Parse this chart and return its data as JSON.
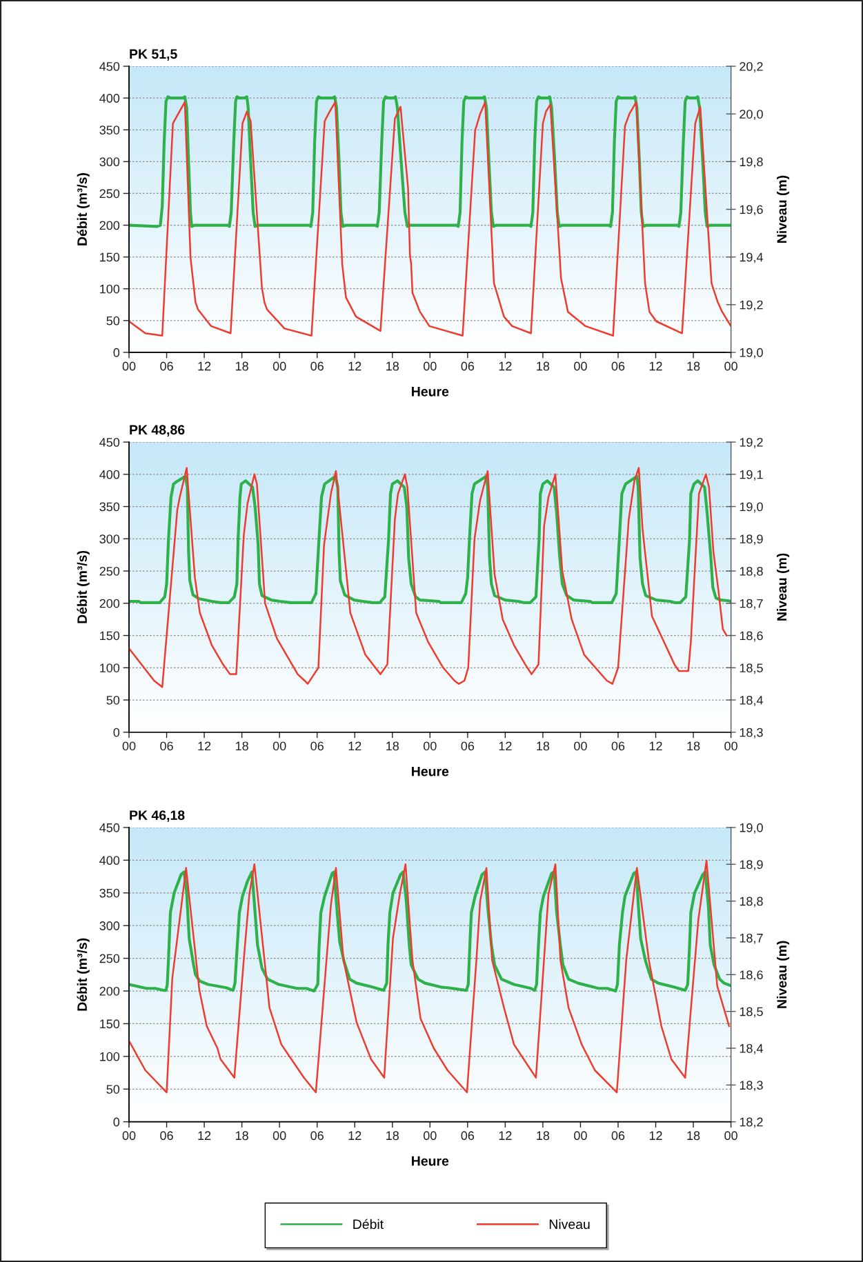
{
  "chart_data": [
    {
      "type": "line",
      "title": "PK 51,5",
      "xlabel": "Heure",
      "ylabel": "Débit (m³/s)",
      "y2label": "Niveau (m)",
      "grid": "y",
      "xlim": [
        0,
        96
      ],
      "xticks": [
        {
          "value": 0,
          "label": "00"
        },
        {
          "value": 6,
          "label": "06"
        },
        {
          "value": 12,
          "label": "12"
        },
        {
          "value": 18,
          "label": "18"
        },
        {
          "value": 24,
          "label": "00"
        },
        {
          "value": 30,
          "label": "06"
        },
        {
          "value": 36,
          "label": "12"
        },
        {
          "value": 42,
          "label": "18"
        },
        {
          "value": 48,
          "label": "00"
        },
        {
          "value": 54,
          "label": "06"
        },
        {
          "value": 60,
          "label": "12"
        },
        {
          "value": 66,
          "label": "18"
        },
        {
          "value": 72,
          "label": "00"
        },
        {
          "value": 78,
          "label": "06"
        },
        {
          "value": 84,
          "label": "12"
        },
        {
          "value": 90,
          "label": "18"
        },
        {
          "value": 96,
          "label": "00"
        }
      ],
      "ylim": [
        0,
        450
      ],
      "yticks": [
        0,
        50,
        100,
        150,
        200,
        250,
        300,
        350,
        400,
        450
      ],
      "y2lim": [
        19.0,
        20.2
      ],
      "y2ticks": [
        {
          "value": 19.0,
          "label": "19,0"
        },
        {
          "value": 19.2,
          "label": "19,2"
        },
        {
          "value": 19.4,
          "label": "19,4"
        },
        {
          "value": 19.6,
          "label": "19,6"
        },
        {
          "value": 19.8,
          "label": "19,8"
        },
        {
          "value": 20.0,
          "label": "20,0"
        },
        {
          "value": 20.2,
          "label": "20,2"
        }
      ],
      "series": [
        {
          "color": "#2eb04b",
          "axis": "y",
          "x": [
            0,
            4.5,
            5.0,
            5.3,
            5.6,
            5.9,
            6.2,
            6.6,
            8.6,
            8.9,
            9.2,
            9.5,
            9.8,
            10.0,
            10.5,
            15.7,
            16.0,
            16.3,
            16.7,
            17.0,
            17.2,
            17.6,
            18.4,
            18.8,
            19.0,
            19.4,
            19.8,
            20.1,
            20.6,
            28.7,
            29.0,
            29.3,
            29.6,
            29.9,
            30.2,
            30.6,
            32.5,
            32.8,
            33.1,
            33.5,
            33.8,
            34.1,
            34.6,
            39.3,
            39.6,
            39.9,
            40.3,
            40.6,
            40.9,
            41.3,
            42.2,
            42.5,
            42.8,
            43.4,
            44.0,
            44.4,
            44.9,
            52.2,
            52.5,
            52.8,
            53.1,
            53.4,
            53.7,
            54.1,
            56.4,
            56.7,
            57.0,
            57.4,
            57.8,
            58.1,
            58.6,
            63.8,
            64.1,
            64.4,
            64.7,
            65.0,
            65.3,
            65.7,
            66.8,
            67.1,
            67.4,
            67.9,
            68.3,
            68.6,
            69.1,
            76.5,
            76.8,
            77.1,
            77.4,
            77.7,
            78.0,
            78.4,
            80.4,
            80.7,
            81.0,
            81.4,
            81.7,
            82.0,
            82.5,
            87.4,
            87.7,
            88.0,
            88.4,
            88.7,
            89.0,
            89.4,
            90.4,
            90.7,
            91.0,
            91.5,
            91.9,
            92.2,
            92.7,
            96
          ],
          "values": [
            200,
            198,
            200,
            230,
            330,
            395,
            402,
            400,
            400,
            402,
            385,
            300,
            220,
            198,
            200,
            200,
            198,
            220,
            330,
            395,
            402,
            400,
            400,
            402,
            385,
            300,
            220,
            198,
            200,
            200,
            198,
            220,
            330,
            395,
            402,
            400,
            400,
            402,
            385,
            300,
            220,
            198,
            200,
            200,
            198,
            220,
            330,
            395,
            402,
            400,
            400,
            402,
            385,
            300,
            220,
            198,
            200,
            200,
            198,
            220,
            330,
            395,
            402,
            400,
            400,
            402,
            385,
            300,
            220,
            198,
            200,
            200,
            198,
            220,
            330,
            395,
            402,
            400,
            400,
            402,
            385,
            300,
            220,
            198,
            200,
            200,
            198,
            220,
            330,
            395,
            402,
            400,
            400,
            402,
            385,
            300,
            220,
            198,
            200,
            200,
            198,
            220,
            330,
            395,
            402,
            400,
            400,
            402,
            385,
            300,
            220,
            198,
            200,
            200
          ]
        },
        {
          "color": "#ee3b2d",
          "axis": "y2",
          "x": [
            0,
            2.6,
            5.3,
            7.0,
            7.2,
            8.9,
            9.8,
            10.6,
            11.0,
            13.1,
            16.2,
            18.1,
            18.8,
            19.4,
            21.2,
            21.6,
            22.0,
            24.8,
            29.1,
            31.2,
            32.0,
            32.9,
            34.0,
            34.6,
            36.2,
            40.1,
            42.4,
            43.3,
            44.5,
            44.8,
            45.0,
            45.2,
            46.4,
            47.9,
            53.2,
            55.2,
            56.0,
            56.8,
            58.2,
            59.8,
            61.1,
            64.1,
            66.0,
            66.5,
            67.2,
            68.9,
            70.0,
            72.8,
            77.2,
            79.1,
            79.8,
            80.9,
            82.3,
            83.0,
            84.1,
            88.2,
            90.3,
            91.1,
            92.9,
            93.9,
            94.6,
            96
          ],
          "values": [
            19.13,
            19.08,
            19.07,
            19.96,
            19.97,
            20.05,
            19.4,
            19.21,
            19.18,
            19.11,
            19.08,
            19.96,
            20.01,
            19.97,
            19.27,
            19.21,
            19.18,
            19.1,
            19.07,
            19.97,
            20.01,
            20.05,
            19.37,
            19.23,
            19.15,
            19.09,
            19.98,
            20.03,
            19.69,
            19.41,
            19.37,
            19.25,
            19.17,
            19.11,
            19.07,
            19.93,
            20.0,
            20.05,
            19.29,
            19.15,
            19.11,
            19.08,
            19.96,
            20.01,
            20.04,
            19.31,
            19.17,
            19.11,
            19.07,
            19.95,
            20.0,
            20.05,
            19.29,
            19.17,
            19.13,
            19.08,
            19.96,
            20.03,
            19.29,
            19.21,
            19.17,
            19.11
          ]
        }
      ]
    },
    {
      "type": "line",
      "title": "PK 48,86",
      "xlabel": "Heure",
      "ylabel": "Débit (m³/s)",
      "y2label": "Niveau (m)",
      "grid": "y",
      "xlim": [
        0,
        96
      ],
      "xticks": [
        {
          "value": 0,
          "label": "00"
        },
        {
          "value": 6,
          "label": "06"
        },
        {
          "value": 12,
          "label": "12"
        },
        {
          "value": 18,
          "label": "18"
        },
        {
          "value": 24,
          "label": "00"
        },
        {
          "value": 30,
          "label": "06"
        },
        {
          "value": 36,
          "label": "12"
        },
        {
          "value": 42,
          "label": "18"
        },
        {
          "value": 48,
          "label": "00"
        },
        {
          "value": 54,
          "label": "06"
        },
        {
          "value": 60,
          "label": "12"
        },
        {
          "value": 66,
          "label": "18"
        },
        {
          "value": 72,
          "label": "00"
        },
        {
          "value": 78,
          "label": "06"
        },
        {
          "value": 84,
          "label": "12"
        },
        {
          "value": 90,
          "label": "18"
        },
        {
          "value": 96,
          "label": "00"
        }
      ],
      "ylim": [
        0,
        450
      ],
      "yticks": [
        0,
        50,
        100,
        150,
        200,
        250,
        300,
        350,
        400,
        450
      ],
      "y2lim": [
        18.3,
        19.2
      ],
      "y2ticks": [
        {
          "value": 18.3,
          "label": "18,3"
        },
        {
          "value": 18.4,
          "label": "18,4"
        },
        {
          "value": 18.5,
          "label": "18,5"
        },
        {
          "value": 18.6,
          "label": "18,6"
        },
        {
          "value": 18.7,
          "label": "18,7"
        },
        {
          "value": 18.8,
          "label": "18,8"
        },
        {
          "value": 18.9,
          "label": "18,9"
        },
        {
          "value": 19.0,
          "label": "19,0"
        },
        {
          "value": 19.1,
          "label": "19,1"
        },
        {
          "value": 19.2,
          "label": "19,2"
        }
      ],
      "series": [
        {
          "color": "#2eb04b",
          "axis": "y",
          "x": [
            0,
            1.5,
            1.9,
            4.9,
            5.7,
            6.0,
            6.3,
            6.7,
            7.1,
            7.5,
            9.0,
            9.3,
            9.5,
            9.7,
            10.2,
            11.2,
            13.2,
            14.6,
            15.9,
            16.8,
            17.2,
            17.4,
            17.7,
            17.9,
            18.6,
            19.7,
            20.1,
            20.6,
            20.8,
            21.2,
            22.7,
            24.1,
            25.8,
            29.1,
            29.8,
            30.3,
            30.7,
            31.2,
            32.9,
            33.3,
            33.5,
            33.7,
            34.4,
            35.9,
            37.3,
            38.8,
            40.0,
            40.8,
            41.4,
            41.7,
            42.0,
            42.8,
            43.9,
            44.3,
            44.6,
            45.0,
            45.7,
            46.4,
            49.4,
            49.7,
            53.0,
            53.7,
            54.0,
            54.3,
            54.7,
            55.1,
            57.0,
            57.2,
            57.5,
            57.8,
            58.3,
            60.0,
            62.1,
            62.9,
            64.0,
            64.9,
            65.4,
            65.6,
            66.0,
            66.7,
            67.8,
            68.2,
            68.7,
            69.1,
            69.8,
            70.9,
            73.5,
            73.9,
            77.0,
            77.7,
            78.2,
            78.6,
            79.2,
            81.0,
            81.2,
            81.5,
            81.9,
            82.4,
            84.1,
            86.3,
            87.0,
            87.9,
            88.8,
            89.4,
            89.6,
            90.1,
            90.7,
            91.8,
            92.2,
            92.8,
            93.1,
            93.6,
            94.4,
            95.5,
            96
          ],
          "values": [
            203,
            203,
            201,
            201,
            210,
            230,
            300,
            365,
            385,
            388,
            397,
            380,
            280,
            235,
            213,
            207,
            203,
            201,
            201,
            210,
            230,
            300,
            365,
            385,
            390,
            380,
            350,
            290,
            230,
            212,
            205,
            203,
            201,
            201,
            215,
            300,
            365,
            385,
            397,
            380,
            280,
            235,
            213,
            205,
            203,
            201,
            201,
            210,
            300,
            370,
            385,
            390,
            380,
            350,
            270,
            230,
            210,
            205,
            203,
            201,
            201,
            215,
            240,
            300,
            370,
            385,
            397,
            380,
            270,
            230,
            212,
            205,
            203,
            201,
            201,
            210,
            300,
            370,
            385,
            390,
            380,
            340,
            270,
            230,
            212,
            205,
            203,
            201,
            201,
            215,
            300,
            370,
            385,
            397,
            380,
            270,
            230,
            212,
            205,
            203,
            201,
            201,
            210,
            300,
            370,
            385,
            390,
            380,
            340,
            270,
            225,
            208,
            205,
            204,
            203
          ]
        },
        {
          "color": "#ee3b2d",
          "axis": "y2",
          "x": [
            0,
            4.0,
            5.3,
            6.0,
            7.7,
            8.1,
            9.2,
            10.5,
            11.3,
            13.2,
            15.0,
            16.1,
            17.1,
            18.3,
            18.9,
            20.0,
            20.4,
            21.7,
            23.6,
            26.9,
            28.0,
            28.5,
            30.2,
            31.1,
            32.2,
            33.0,
            35.3,
            37.7,
            40.1,
            41.2,
            42.4,
            42.9,
            44.0,
            44.4,
            45.8,
            47.7,
            50.1,
            51.9,
            52.6,
            53.5,
            54.1,
            55.1,
            56.0,
            57.2,
            58.3,
            59.6,
            61.4,
            63.2,
            64.2,
            65.3,
            66.2,
            66.9,
            68.0,
            69.1,
            70.6,
            72.6,
            76.2,
            77.1,
            78.0,
            79.7,
            80.6,
            81.3,
            81.9,
            83.4,
            87.0,
            87.7,
            89.2,
            89.6,
            90.9,
            92.0,
            92.5,
            93.2,
            94.0,
            94.7,
            95.3
          ],
          "values": [
            18.56,
            18.46,
            18.44,
            18.6,
            18.99,
            19.03,
            19.12,
            18.78,
            18.67,
            18.57,
            18.51,
            18.48,
            18.48,
            18.91,
            19.01,
            19.1,
            19.07,
            18.7,
            18.59,
            18.48,
            18.46,
            18.45,
            18.5,
            18.88,
            19.04,
            19.11,
            18.67,
            18.54,
            18.48,
            18.51,
            18.96,
            19.04,
            19.1,
            19.06,
            18.67,
            18.58,
            18.5,
            18.46,
            18.45,
            18.46,
            18.5,
            18.9,
            19.02,
            19.11,
            18.79,
            18.65,
            18.57,
            18.51,
            18.48,
            18.51,
            18.94,
            19.03,
            19.1,
            18.8,
            18.65,
            18.54,
            18.46,
            18.45,
            18.5,
            18.96,
            19.08,
            19.12,
            18.93,
            18.66,
            18.51,
            18.49,
            18.49,
            18.58,
            19.04,
            19.1,
            19.06,
            18.86,
            18.74,
            18.62,
            18.6
          ]
        }
      ]
    },
    {
      "type": "line",
      "title": "PK 46,18",
      "xlabel": "Heure",
      "ylabel": "Débit (m³/s)",
      "y2label": "Niveau (m)",
      "grid": "y",
      "legend": "bottom",
      "xlim": [
        0,
        96
      ],
      "xticks": [
        {
          "value": 0,
          "label": "00"
        },
        {
          "value": 6,
          "label": "06"
        },
        {
          "value": 12,
          "label": "12"
        },
        {
          "value": 18,
          "label": "18"
        },
        {
          "value": 24,
          "label": "00"
        },
        {
          "value": 30,
          "label": "06"
        },
        {
          "value": 36,
          "label": "12"
        },
        {
          "value": 42,
          "label": "18"
        },
        {
          "value": 48,
          "label": "00"
        },
        {
          "value": 54,
          "label": "06"
        },
        {
          "value": 60,
          "label": "12"
        },
        {
          "value": 66,
          "label": "18"
        },
        {
          "value": 72,
          "label": "00"
        },
        {
          "value": 78,
          "label": "06"
        },
        {
          "value": 84,
          "label": "12"
        },
        {
          "value": 90,
          "label": "18"
        },
        {
          "value": 96,
          "label": "00"
        }
      ],
      "ylim": [
        0,
        450
      ],
      "yticks": [
        0,
        50,
        100,
        150,
        200,
        250,
        300,
        350,
        400,
        450
      ],
      "y2lim": [
        18.2,
        19.0
      ],
      "y2ticks": [
        {
          "value": 18.2,
          "label": "18,2"
        },
        {
          "value": 18.3,
          "label": "18,3"
        },
        {
          "value": 18.4,
          "label": "18,4"
        },
        {
          "value": 18.5,
          "label": "18,5"
        },
        {
          "value": 18.6,
          "label": "18,6"
        },
        {
          "value": 18.7,
          "label": "18,7"
        },
        {
          "value": 18.8,
          "label": "18,8"
        },
        {
          "value": 18.9,
          "label": "18,9"
        },
        {
          "value": 19.0,
          "label": "19,0"
        }
      ],
      "series": [
        {
          "name": "Débit",
          "color": "#2eb04b",
          "axis": "y",
          "x": [
            0,
            2.8,
            4.2,
            5.5,
            5.9,
            6.1,
            6.3,
            6.6,
            7.2,
            8.3,
            8.8,
            9.2,
            9.6,
            10.3,
            10.6,
            11.3,
            12.6,
            15.5,
            16.6,
            16.9,
            17.2,
            17.6,
            18.1,
            18.9,
            19.6,
            20.1,
            20.5,
            21.2,
            22.1,
            23.9,
            26.8,
            28.3,
            29.5,
            30.1,
            30.3,
            30.6,
            31.2,
            32.4,
            32.7,
            33.2,
            33.6,
            34.3,
            35.2,
            36.3,
            38.8,
            40.6,
            41.1,
            41.3,
            41.6,
            42.1,
            43.3,
            43.7,
            44.2,
            44.7,
            45.0,
            46.1,
            47.2,
            49.7,
            50.8,
            53.8,
            54.1,
            54.4,
            54.6,
            55.2,
            56.3,
            56.8,
            57.2,
            57.8,
            58.3,
            59.4,
            61.4,
            64.1,
            64.7,
            65.0,
            65.3,
            65.6,
            66.1,
            67.4,
            67.8,
            68.2,
            68.8,
            69.2,
            70.1,
            71.6,
            74.9,
            76.3,
            77.6,
            77.9,
            78.2,
            78.7,
            79.1,
            80.5,
            80.9,
            81.3,
            81.6,
            82.4,
            83.3,
            84.4,
            86.9,
            88.7,
            89.1,
            89.4,
            89.6,
            90.2,
            91.5,
            91.9,
            92.4,
            92.7,
            93.3,
            94.2,
            94.9,
            96
          ],
          "values": [
            210,
            204,
            204,
            201,
            201,
            210,
            250,
            320,
            350,
            378,
            382,
            350,
            280,
            240,
            225,
            215,
            210,
            205,
            201,
            212,
            260,
            320,
            345,
            368,
            382,
            320,
            270,
            235,
            218,
            210,
            204,
            204,
            200,
            210,
            265,
            320,
            345,
            380,
            382,
            320,
            275,
            245,
            218,
            212,
            206,
            201,
            212,
            270,
            320,
            350,
            378,
            382,
            340,
            270,
            240,
            218,
            212,
            206,
            205,
            201,
            210,
            280,
            320,
            345,
            378,
            382,
            330,
            270,
            240,
            218,
            210,
            204,
            201,
            210,
            270,
            320,
            345,
            380,
            382,
            320,
            270,
            240,
            218,
            212,
            204,
            204,
            200,
            210,
            270,
            320,
            345,
            380,
            382,
            320,
            280,
            245,
            218,
            212,
            206,
            201,
            210,
            270,
            320,
            350,
            378,
            382,
            330,
            270,
            240,
            218,
            212,
            208
          ]
        },
        {
          "name": "Niveau",
          "color": "#ee3b2d",
          "axis": "y2",
          "x": [
            0,
            2.6,
            6.0,
            6.9,
            9.1,
            11.2,
            12.4,
            14.1,
            14.6,
            16.8,
            18.3,
            19.2,
            20.0,
            22.4,
            24.3,
            27.9,
            29.8,
            32.2,
            33.0,
            34.2,
            36.3,
            38.6,
            40.7,
            42.1,
            43.2,
            44.1,
            45.2,
            46.5,
            48.6,
            50.8,
            53.9,
            55.4,
            56.0,
            57.0,
            57.9,
            59.8,
            61.4,
            64.9,
            66.9,
            68.0,
            68.8,
            70.1,
            72.2,
            74.3,
            77.8,
            79.3,
            81.0,
            82.9,
            84.9,
            86.5,
            88.7,
            90.8,
            92.1,
            93.8,
            95.7
          ],
          "values": [
            18.42,
            18.34,
            18.28,
            18.59,
            18.89,
            18.56,
            18.46,
            18.4,
            18.37,
            18.32,
            18.64,
            18.82,
            18.9,
            18.51,
            18.41,
            18.32,
            18.28,
            18.79,
            18.89,
            18.64,
            18.47,
            18.37,
            18.32,
            18.7,
            18.82,
            18.9,
            18.64,
            18.48,
            18.4,
            18.34,
            18.28,
            18.64,
            18.8,
            18.89,
            18.64,
            18.51,
            18.41,
            18.32,
            18.82,
            18.9,
            18.64,
            18.51,
            18.41,
            18.34,
            18.28,
            18.64,
            18.89,
            18.64,
            18.46,
            18.37,
            18.32,
            18.75,
            18.91,
            18.57,
            18.46
          ]
        }
      ]
    }
  ]
}
